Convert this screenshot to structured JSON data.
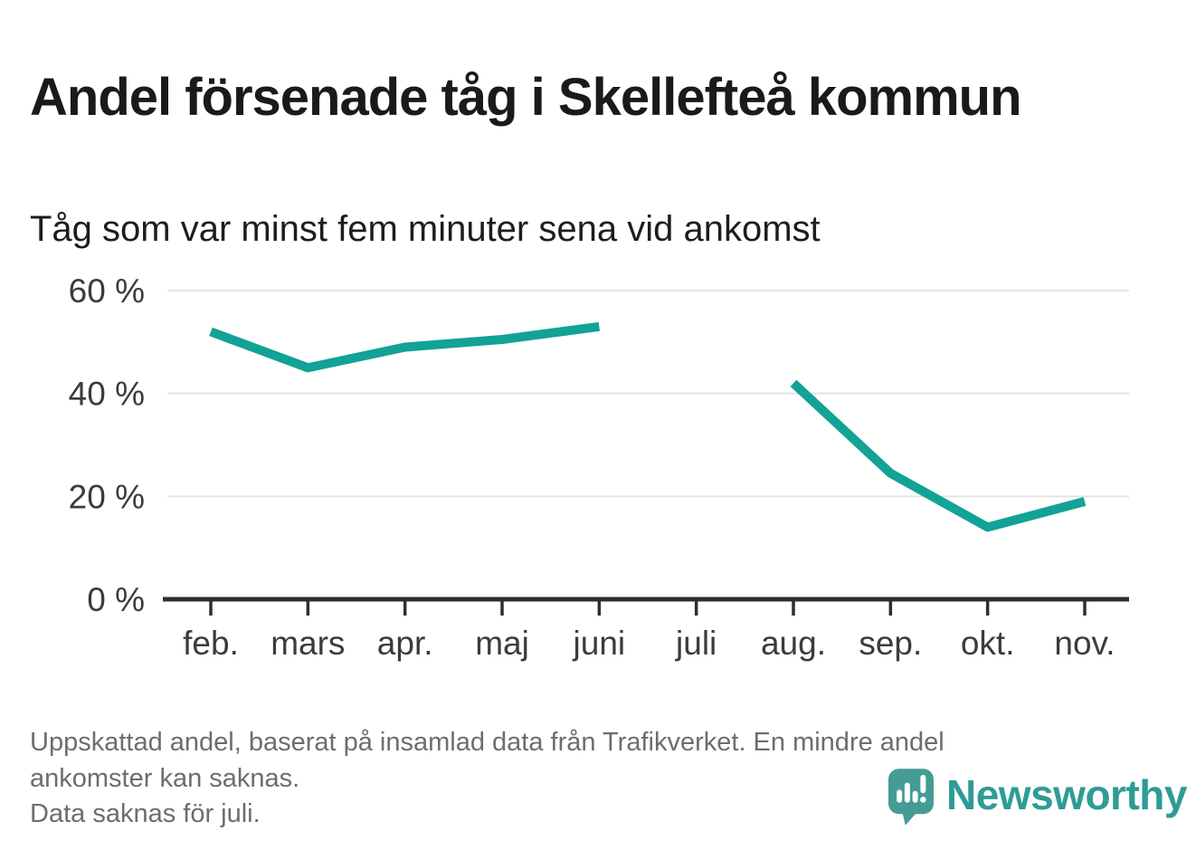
{
  "header": {
    "title": "Andel försenade tåg i Skellefteå kommun",
    "subtitle": "Tåg som var minst fem minuter sena vid ankomst"
  },
  "chart_data": {
    "type": "line",
    "x": [
      "feb.",
      "mars",
      "apr.",
      "maj",
      "juni",
      "juli",
      "aug.",
      "sep.",
      "okt.",
      "nov."
    ],
    "series": [
      {
        "values": [
          52,
          45,
          49,
          50.5,
          53,
          null,
          42,
          24.5,
          14,
          19
        ]
      }
    ],
    "unit": "%",
    "ylim": [
      0,
      60
    ],
    "yticks": [
      0,
      20,
      40,
      60
    ],
    "ytick_labels": [
      "0 %",
      "20 %",
      "40 %",
      "60 %"
    ],
    "grid": "horizontal-light",
    "legend": "none",
    "missing_months": [
      "juli"
    ]
  },
  "footnote": {
    "lines": [
      "Uppskattad andel, baserat på insamlad data från Trafikverket. En mindre andel",
      "ankomster kan saknas.",
      "Data saknas för juli."
    ]
  },
  "logo": {
    "wordmark": "Newsworthy",
    "icon": "speech-bubble-bar-chart-icon",
    "icon_color": "#449C95",
    "wordmark_color": "#2E9C95"
  },
  "colors": {
    "line": "#12A296",
    "grid": "#E3E3E3",
    "axis": "#2E2E2E",
    "axis_text": "#3B3B3B",
    "title_text": "#1A1A1A",
    "footnote_text": "#6D6D6D",
    "background": "#FFFFFF"
  }
}
